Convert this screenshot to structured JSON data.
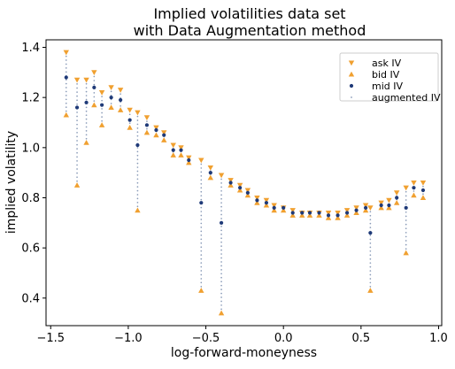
{
  "chart_data": {
    "type": "scatter",
    "title_lines": [
      "Implied volatilities data set",
      "with Data Augmentation method"
    ],
    "xlabel": "log-forward-moneyness",
    "ylabel": "implied volatility",
    "xlim": [
      -1.53,
      1.02
    ],
    "ylim": [
      0.29,
      1.43
    ],
    "xticks": [
      -1.5,
      -1.0,
      -0.5,
      0.0,
      0.5,
      1.0
    ],
    "xtick_labels": [
      "−1.5",
      "−1.0",
      "−0.5",
      "0.0",
      "0.5",
      "1.0"
    ],
    "yticks": [
      0.4,
      0.6,
      0.8,
      1.0,
      1.2,
      1.4
    ],
    "ytick_labels": [
      "0.4",
      "0.6",
      "0.8",
      "1.0",
      "1.2",
      "1.4"
    ],
    "grid": false,
    "legend_position": "top-right",
    "colors": {
      "ask": "#f0a030",
      "bid": "#f0a030",
      "mid": "#1f3a78",
      "augmented": "#8a9bb8"
    },
    "legend": [
      {
        "key": "ask",
        "label": "ask IV",
        "marker": "triangle-down"
      },
      {
        "key": "bid",
        "label": "bid IV",
        "marker": "triangle-up"
      },
      {
        "key": "mid",
        "label": "mid IV",
        "marker": "circle"
      },
      {
        "key": "augmented",
        "label": "augmented IV",
        "marker": "dot"
      }
    ],
    "x": [
      -1.4,
      -1.33,
      -1.27,
      -1.22,
      -1.17,
      -1.11,
      -1.05,
      -0.99,
      -0.94,
      -0.88,
      -0.82,
      -0.77,
      -0.71,
      -0.66,
      -0.61,
      -0.53,
      -0.47,
      -0.4,
      -0.34,
      -0.28,
      -0.23,
      -0.17,
      -0.11,
      -0.06,
      0.0,
      0.06,
      0.12,
      0.17,
      0.23,
      0.29,
      0.35,
      0.41,
      0.47,
      0.53,
      0.56,
      0.63,
      0.68,
      0.73,
      0.79,
      0.84,
      0.9
    ],
    "ask": [
      1.38,
      1.27,
      1.27,
      1.3,
      1.22,
      1.24,
      1.23,
      1.15,
      1.14,
      1.12,
      1.08,
      1.06,
      1.01,
      1.0,
      0.96,
      0.95,
      0.92,
      0.89,
      0.87,
      0.85,
      0.83,
      0.8,
      0.79,
      0.77,
      0.76,
      0.75,
      0.74,
      0.74,
      0.74,
      0.74,
      0.74,
      0.75,
      0.76,
      0.77,
      0.76,
      0.78,
      0.79,
      0.82,
      0.84,
      0.86,
      0.86
    ],
    "bid": [
      1.13,
      0.85,
      1.02,
      1.17,
      1.09,
      1.16,
      1.15,
      1.08,
      0.75,
      1.06,
      1.05,
      1.03,
      0.97,
      0.97,
      0.94,
      0.43,
      0.88,
      0.34,
      0.85,
      0.83,
      0.81,
      0.78,
      0.77,
      0.75,
      0.75,
      0.73,
      0.73,
      0.73,
      0.73,
      0.72,
      0.72,
      0.73,
      0.74,
      0.75,
      0.43,
      0.76,
      0.76,
      0.78,
      0.58,
      0.81,
      0.8
    ],
    "mid": [
      1.28,
      1.16,
      1.18,
      1.24,
      1.17,
      1.2,
      1.19,
      1.11,
      1.01,
      1.09,
      1.07,
      1.05,
      0.99,
      0.99,
      0.95,
      0.78,
      0.9,
      0.7,
      0.86,
      0.84,
      0.82,
      0.79,
      0.78,
      0.76,
      0.76,
      0.74,
      0.74,
      0.74,
      0.74,
      0.73,
      0.73,
      0.74,
      0.75,
      0.76,
      0.66,
      0.77,
      0.77,
      0.8,
      0.76,
      0.84,
      0.83
    ]
  }
}
